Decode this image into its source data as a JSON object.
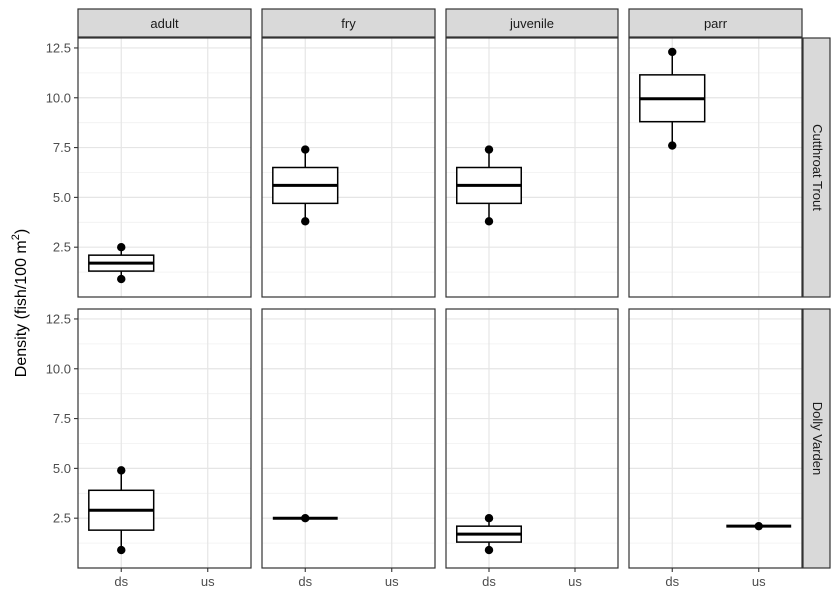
{
  "chart_data": {
    "type": "boxplot",
    "ylabel_main": "Density (fish/100 m",
    "ylabel_sup": "2",
    "ylabel_close": ")",
    "xlabel": "",
    "x_categories": [
      "ds",
      "us"
    ],
    "col_facets": [
      "adult",
      "fry",
      "juvenile",
      "parr"
    ],
    "row_facets": [
      "Cutthroat Trout",
      "Dolly Varden"
    ],
    "ylim": [
      0,
      13
    ],
    "yticks": [
      2.5,
      5.0,
      7.5,
      10.0,
      12.5
    ],
    "ytick_labels": [
      "2.5",
      "5.0",
      "7.5",
      "10.0",
      "12.5"
    ],
    "grid": true,
    "boxes": [
      {
        "row": "Cutthroat Trout",
        "col": "adult",
        "x": "ds",
        "min": 0.9,
        "q1": 1.3,
        "median": 1.7,
        "q3": 2.1,
        "max": 2.5,
        "points": [
          0.9,
          2.5
        ]
      },
      {
        "row": "Cutthroat Trout",
        "col": "fry",
        "x": "ds",
        "min": 3.8,
        "q1": 4.7,
        "median": 5.6,
        "q3": 6.5,
        "max": 7.4,
        "points": [
          3.8,
          7.4
        ]
      },
      {
        "row": "Cutthroat Trout",
        "col": "juvenile",
        "x": "ds",
        "min": 3.8,
        "q1": 4.7,
        "median": 5.6,
        "q3": 6.5,
        "max": 7.4,
        "points": [
          3.8,
          7.4
        ]
      },
      {
        "row": "Cutthroat Trout",
        "col": "parr",
        "x": "ds",
        "min": 7.6,
        "q1": 8.8,
        "median": 9.95,
        "q3": 11.15,
        "max": 12.3,
        "points": [
          7.6,
          12.3
        ]
      },
      {
        "row": "Dolly Varden",
        "col": "adult",
        "x": "ds",
        "min": 0.9,
        "q1": 1.9,
        "median": 2.9,
        "q3": 3.9,
        "max": 4.9,
        "points": [
          0.9,
          4.9
        ]
      },
      {
        "row": "Dolly Varden",
        "col": "fry",
        "x": "ds",
        "min": 2.5,
        "q1": 2.5,
        "median": 2.5,
        "q3": 2.5,
        "max": 2.5,
        "points": [
          2.5
        ]
      },
      {
        "row": "Dolly Varden",
        "col": "juvenile",
        "x": "ds",
        "min": 0.9,
        "q1": 1.3,
        "median": 1.7,
        "q3": 2.1,
        "max": 2.5,
        "points": [
          0.9,
          2.5
        ]
      },
      {
        "row": "Dolly Varden",
        "col": "parr",
        "x": "us",
        "min": 2.1,
        "q1": 2.1,
        "median": 2.1,
        "q3": 2.1,
        "max": 2.1,
        "points": [
          2.1
        ]
      }
    ]
  }
}
